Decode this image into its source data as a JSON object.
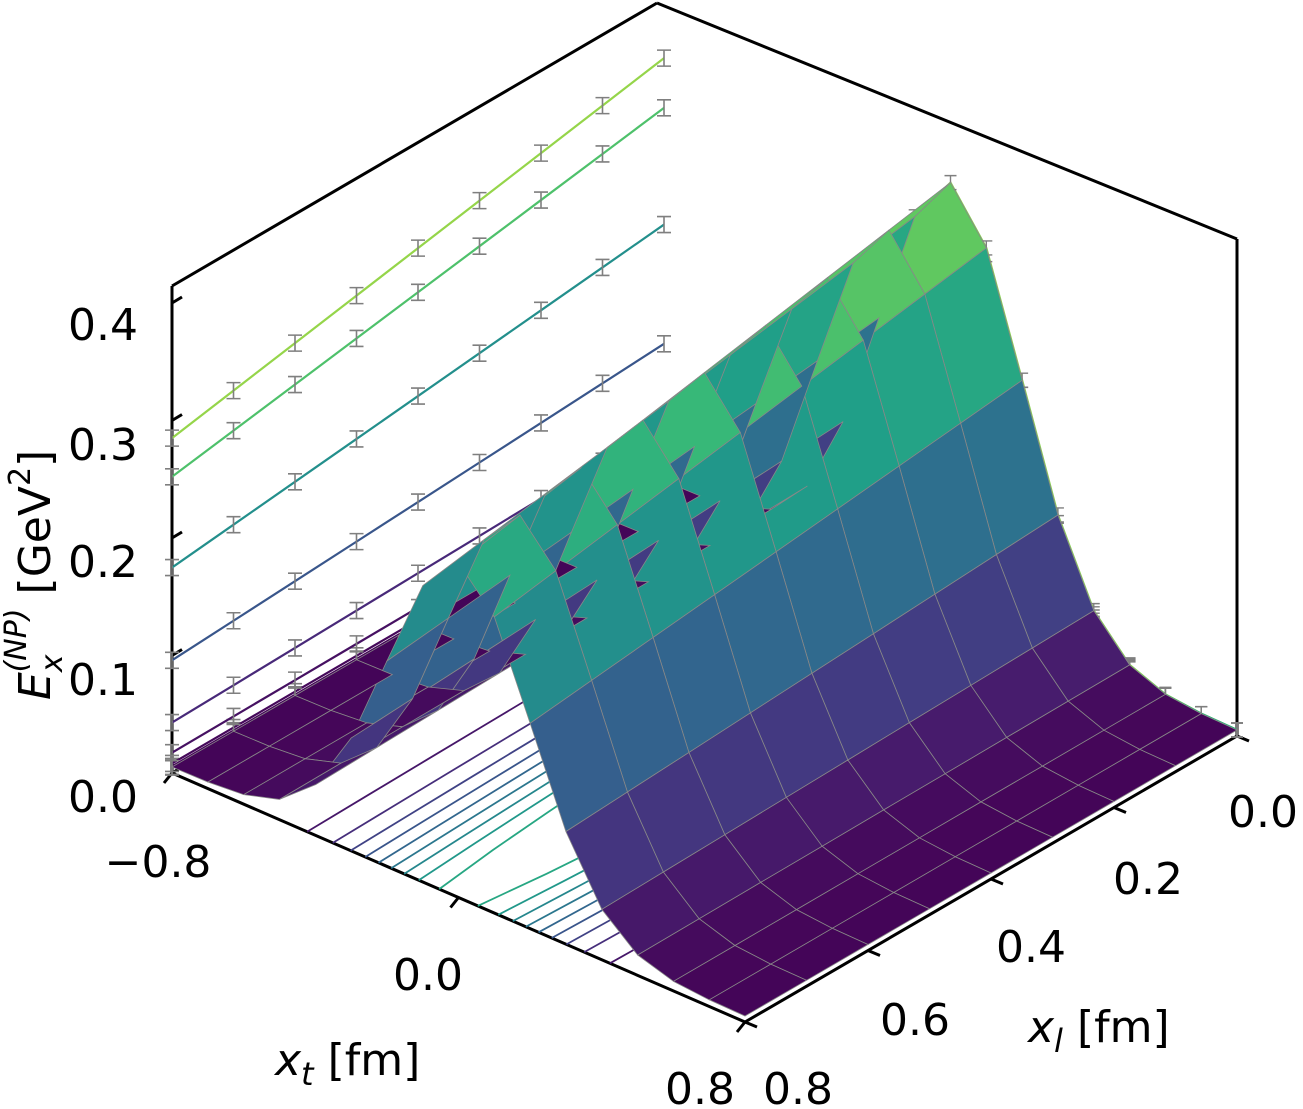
{
  "chart_data": {
    "type": "surface3d",
    "zlabel": {
      "base": "E",
      "sub": "x",
      "sup": "(NP)",
      "unit_pre": "[GeV",
      "unit_pow": "2",
      "unit_post": "]"
    },
    "xlabel": {
      "base": "x",
      "sub": "t",
      "unit": "[fm]"
    },
    "ylabel": {
      "base": "x",
      "sub": "l",
      "unit": "[fm]"
    },
    "z_ticks": [
      "0.0",
      "0.1",
      "0.2",
      "0.3",
      "0.4"
    ],
    "xt_ticks": [
      "−0.8",
      "0.0",
      "0.8"
    ],
    "xl_ticks": [
      "0.0",
      "0.2",
      "0.4",
      "0.6",
      "0.8"
    ],
    "xt_range": [
      -0.8,
      0.8
    ],
    "xl_range": [
      0.0,
      0.8
    ],
    "z_range": [
      0.0,
      0.4
    ],
    "surface": {
      "colormap": "viridis",
      "xt_values": [
        -0.8,
        -0.7,
        -0.6,
        -0.5,
        -0.4,
        -0.3,
        -0.2,
        -0.1,
        0.0,
        0.1,
        0.2,
        0.3,
        0.4,
        0.5,
        0.6,
        0.7,
        0.8
      ],
      "xl_values": [
        0.0,
        0.1,
        0.2,
        0.3,
        0.4,
        0.5,
        0.6,
        0.7,
        0.8
      ],
      "peak_by_xl": [
        0.36,
        0.35,
        0.34,
        0.33,
        0.32,
        0.31,
        0.3,
        0.29,
        0.28
      ],
      "width_fm": 0.2
    },
    "colors": {
      "grid_line": "#888888",
      "errorbar": "#7f7f7f",
      "axis": "#000000"
    }
  }
}
